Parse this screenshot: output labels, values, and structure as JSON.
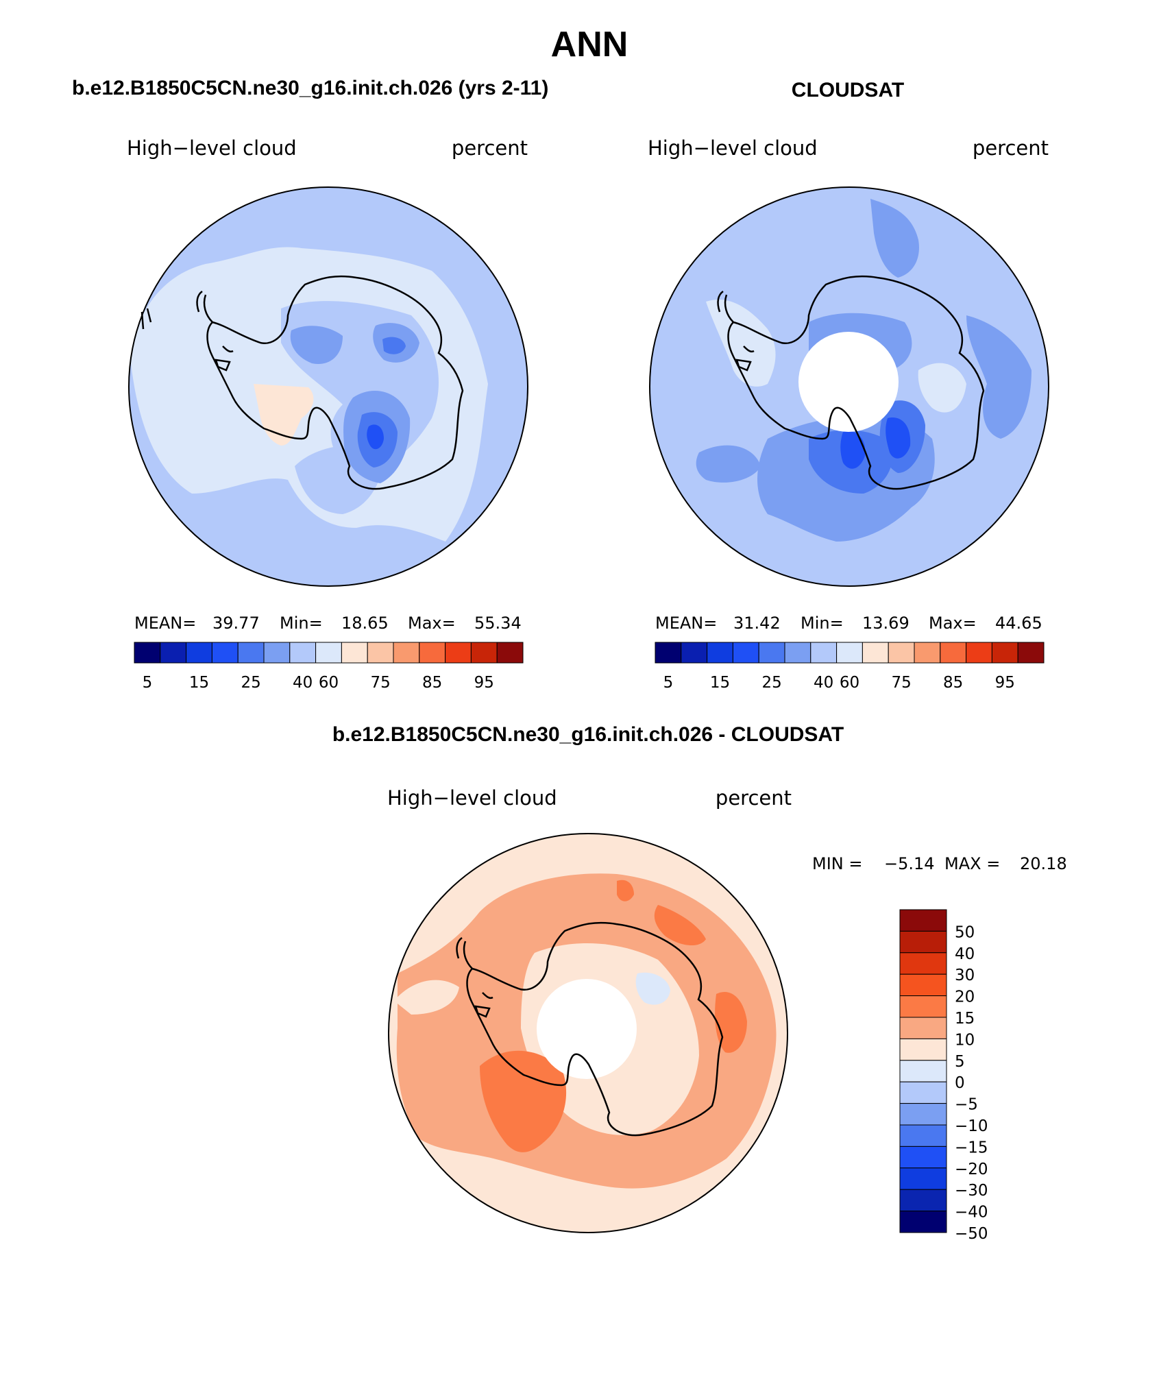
{
  "page": {
    "title": "ANN",
    "model_label": "b.e12.B1850C5CN.ne30_g16.init.ch.026 (yrs 2-11)",
    "obs_label": "CLOUDSAT",
    "diff_label": "b.e12.B1850C5CN.ne30_g16.init.ch.026 - CLOUDSAT"
  },
  "panels": {
    "model": {
      "variable": "High−level cloud",
      "units": "percent",
      "stats": {
        "mean_label": "MEAN=",
        "mean": "39.77",
        "min_label": "Min=",
        "min": "18.65",
        "max_label": "Max=",
        "max": "55.34"
      }
    },
    "obs": {
      "variable": "High−level cloud",
      "units": "percent",
      "stats": {
        "mean_label": "MEAN=",
        "mean": "31.42",
        "min_label": "Min=",
        "min": "13.69",
        "max_label": "Max=",
        "max": "44.65"
      }
    },
    "diff": {
      "variable": "High−level cloud",
      "units": "percent",
      "stats": {
        "min_label": "MIN =",
        "min": "−5.14",
        "max_label": "MAX =",
        "max": "20.18"
      }
    }
  },
  "colorbar_abs": {
    "colors": [
      "#000070",
      "#0a1fb0",
      "#0f3de0",
      "#1f50f5",
      "#4a78f0",
      "#7b9ff2",
      "#b3c9fa",
      "#dce8fa",
      "#fde6d6",
      "#fbc5a6",
      "#f99a6e",
      "#f76a3c",
      "#ec3d16",
      "#c82508",
      "#8b0a0a"
    ],
    "labels": [
      "5",
      "15",
      "25",
      "40",
      "60",
      "75",
      "85",
      "95"
    ]
  },
  "colorbar_diff": {
    "colors": [
      "#8b0a0a",
      "#b81e08",
      "#e0370f",
      "#f5541f",
      "#fb7a45",
      "#f9a882",
      "#fde6d6",
      "#dce8fa",
      "#b3c9fa",
      "#7b9ff2",
      "#4a78f0",
      "#1f50f5",
      "#0f3de0",
      "#0a25b0",
      "#000070"
    ],
    "labels": [
      "50",
      "40",
      "30",
      "20",
      "15",
      "10",
      "5",
      "0",
      "−5",
      "−10",
      "−15",
      "−20",
      "−30",
      "−40",
      "−50"
    ]
  }
}
